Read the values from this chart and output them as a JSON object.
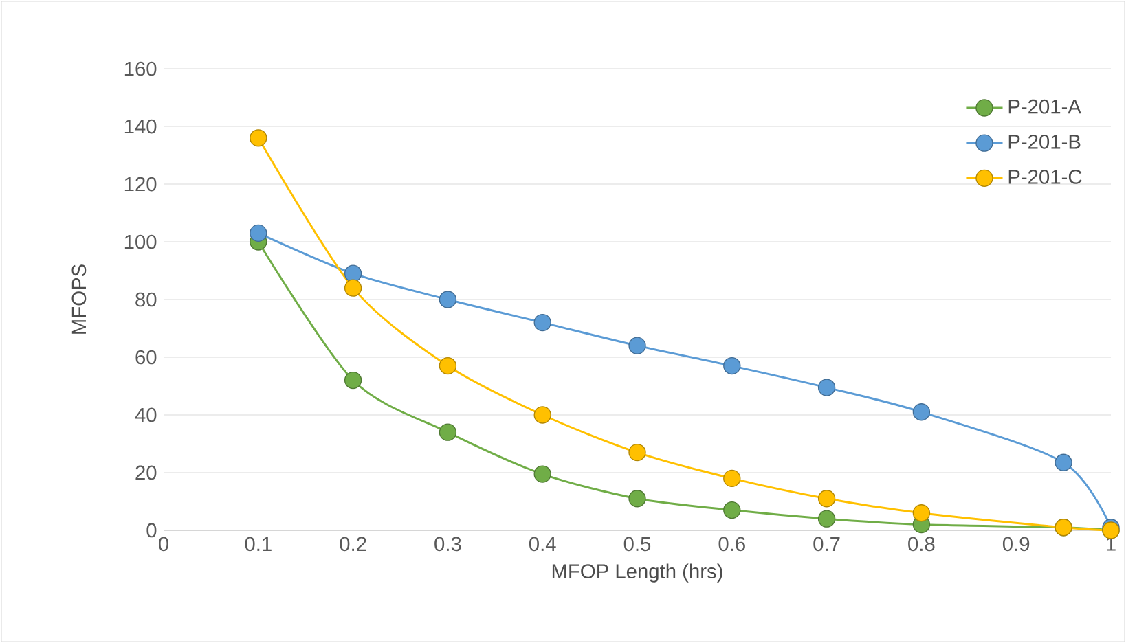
{
  "chart_data": {
    "type": "line",
    "xlabel": "MFOP Length (hrs)",
    "ylabel": "MFOPS",
    "x": [
      0.1,
      0.2,
      0.3,
      0.4,
      0.5,
      0.6,
      0.7,
      0.8,
      0.95,
      1.0
    ],
    "series": [
      {
        "name": "P-201-A",
        "color": "#70ad47",
        "values": [
          100,
          52,
          34,
          19.5,
          11,
          7,
          4,
          2,
          1,
          0
        ]
      },
      {
        "name": "P-201-B",
        "color": "#5b9bd5",
        "values": [
          103,
          89,
          80,
          72,
          64,
          57,
          49.5,
          41,
          23.5,
          1
        ]
      },
      {
        "name": "P-201-C",
        "color": "#ffc000",
        "values": [
          136,
          84,
          57,
          40,
          27,
          18,
          11,
          6,
          1,
          0
        ]
      }
    ],
    "xlim": [
      0,
      1
    ],
    "xticks": [
      0,
      0.1,
      0.2,
      0.3,
      0.4,
      0.5,
      0.6,
      0.7,
      0.8,
      0.9,
      1
    ],
    "ylim": [
      0,
      160
    ],
    "yticks": [
      0,
      20,
      40,
      60,
      80,
      100,
      120,
      140,
      160
    ],
    "grid": "y",
    "legend": "top right",
    "marker": "circle",
    "line_style": "solid"
  }
}
